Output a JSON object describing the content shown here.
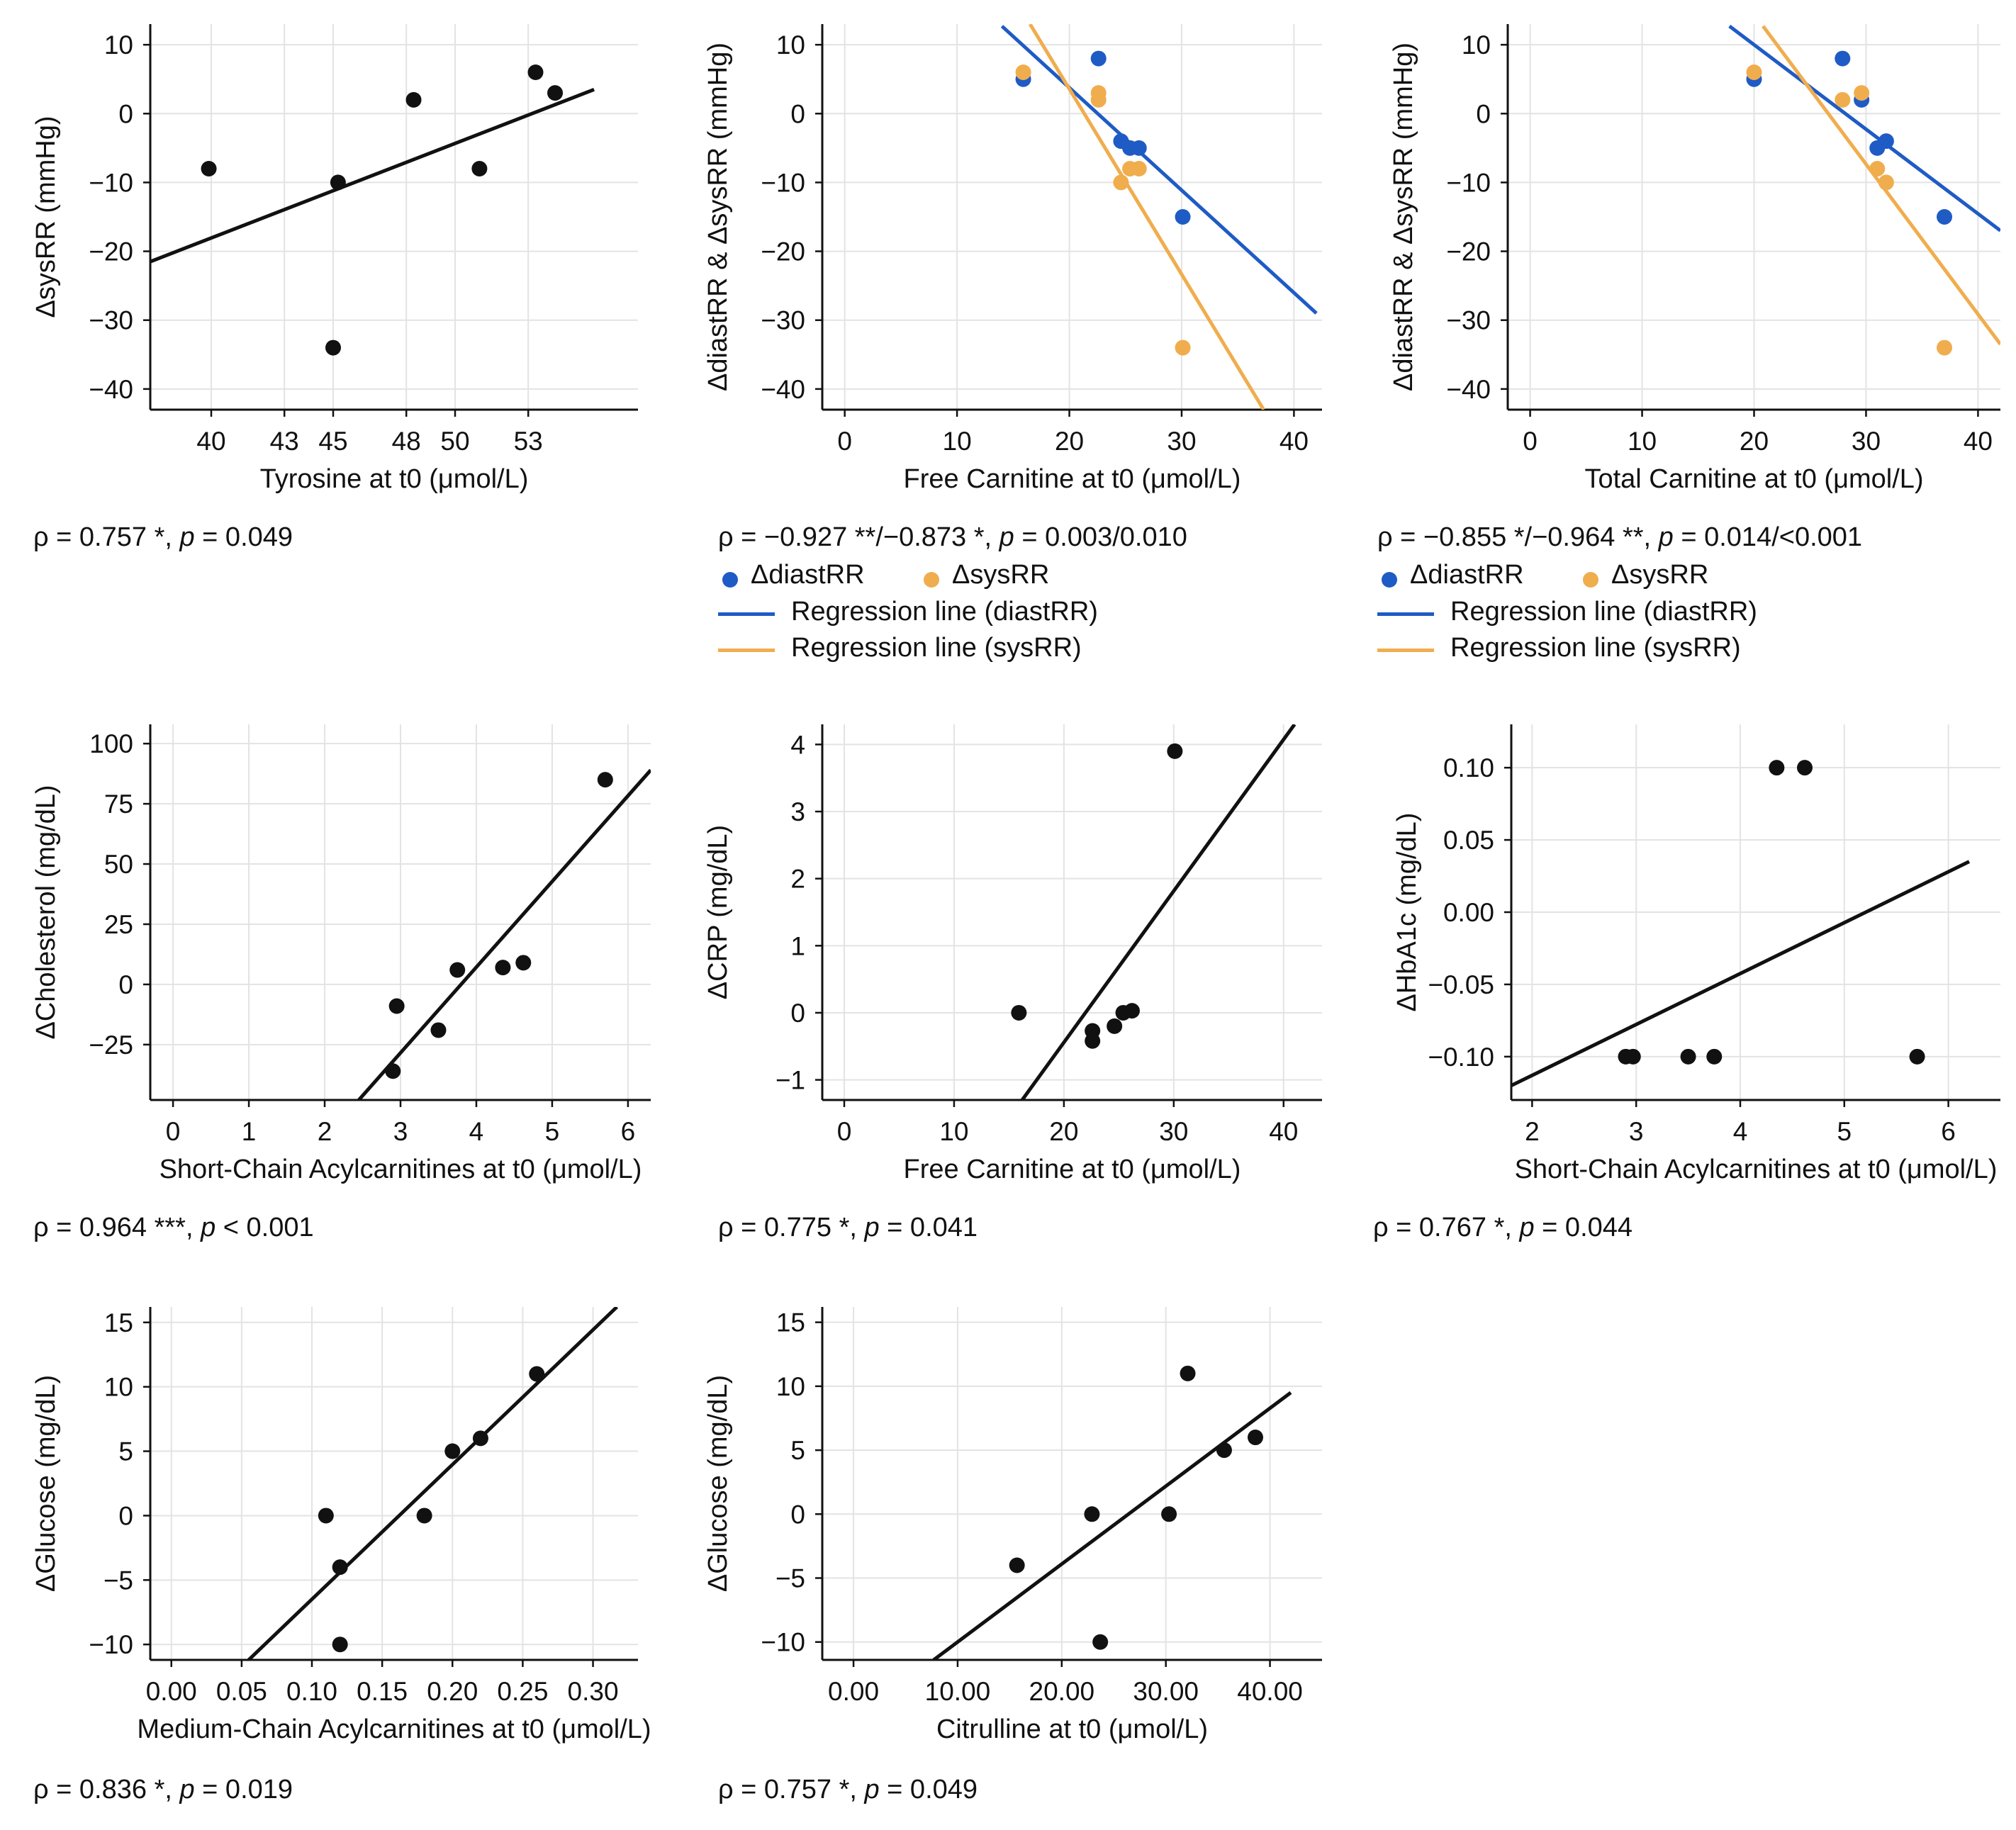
{
  "colors": {
    "diast": "#1f5bc4",
    "sys": "#f0ad4e",
    "black": "#111111",
    "grid": "#e3e3e3"
  },
  "chart_data": [
    {
      "type": "scatter",
      "xlabel": "Tyrosine at t0 (μmol/L)",
      "ylabel": "ΔsysRR (mmHg)",
      "xlim": [
        37.5,
        57.5
      ],
      "ylim": [
        -43,
        13
      ],
      "xticks": [
        40,
        43,
        45,
        48,
        50,
        53
      ],
      "yticks": [
        10,
        0,
        -10,
        -20,
        -30,
        -40
      ],
      "series": [
        {
          "name": "ΔsysRR",
          "color": "black",
          "points": [
            [
              39.9,
              -8
            ],
            [
              45.0,
              -34
            ],
            [
              45.2,
              -10
            ],
            [
              48.3,
              2
            ],
            [
              51.0,
              -8
            ],
            [
              53.3,
              6
            ],
            [
              54.1,
              3
            ]
          ],
          "line": [
            [
              37.5,
              -21.5
            ],
            [
              55.7,
              3.5
            ]
          ]
        }
      ],
      "stat": {
        "rho": "ρ = 0.757 *, ",
        "p": "p",
        "pval": " = 0.049"
      }
    },
    {
      "type": "scatter",
      "xlabel": "Free Carnitine at t0 (μmol/L)",
      "ylabel": "ΔdiastRR & ΔsysRR (mmHg)",
      "xlim": [
        -2,
        42.5
      ],
      "ylim": [
        -43,
        13
      ],
      "xticks": [
        0,
        10,
        20,
        30,
        40
      ],
      "yticks": [
        10,
        0,
        -10,
        -20,
        -30,
        -40
      ],
      "series": [
        {
          "name": "ΔdiastRR",
          "color": "diast",
          "points": [
            [
              15.9,
              5
            ],
            [
              22.6,
              8
            ],
            [
              24.6,
              -4
            ],
            [
              25.4,
              -5
            ],
            [
              26.2,
              -5
            ],
            [
              30.1,
              -15
            ]
          ],
          "line": [
            [
              14,
              12.7
            ],
            [
              42,
              -29
            ]
          ]
        },
        {
          "name": "ΔsysRR",
          "color": "sys",
          "points": [
            [
              15.9,
              6
            ],
            [
              22.6,
              3
            ],
            [
              22.6,
              2
            ],
            [
              24.6,
              -10
            ],
            [
              25.4,
              -8
            ],
            [
              26.2,
              -8
            ],
            [
              30.1,
              -34
            ]
          ],
          "line": [
            [
              16.5,
              13
            ],
            [
              37.3,
              -43
            ]
          ]
        }
      ],
      "stat": {
        "rho": "ρ = −0.927 **/−0.873 *, ",
        "p": "p",
        "pval": " = 0.003/0.010"
      },
      "legend": {
        "dot1": "ΔdiastRR",
        "dot2": "ΔsysRR",
        "line1": "Regression line (diastRR)",
        "line2": "Regression line (sysRR)"
      }
    },
    {
      "type": "scatter",
      "xlabel": "Total Carnitine at t0 (μmol/L)",
      "ylabel": "ΔdiastRR & ΔsysRR (mmHg)",
      "xlim": [
        -2,
        42
      ],
      "ylim": [
        -43,
        13
      ],
      "xticks": [
        0,
        10,
        20,
        30,
        40
      ],
      "yticks": [
        10,
        0,
        -10,
        -20,
        -30,
        -40
      ],
      "series": [
        {
          "name": "ΔdiastRR",
          "color": "diast",
          "points": [
            [
              20.0,
              5
            ],
            [
              27.9,
              8
            ],
            [
              29.6,
              2
            ],
            [
              31.0,
              -5
            ],
            [
              31.8,
              -4
            ],
            [
              37.0,
              -15
            ]
          ],
          "line": [
            [
              17.8,
              12.7
            ],
            [
              42,
              -17
            ]
          ]
        },
        {
          "name": "ΔsysRR",
          "color": "sys",
          "points": [
            [
              20.0,
              6
            ],
            [
              27.9,
              2
            ],
            [
              29.6,
              3
            ],
            [
              31.0,
              -8
            ],
            [
              31.8,
              -10
            ],
            [
              37.0,
              -34
            ]
          ],
          "line": [
            [
              20.8,
              12.7
            ],
            [
              42,
              -33.5
            ]
          ]
        }
      ],
      "stat": {
        "rho": "ρ = −0.855 */−0.964 **, ",
        "p": "p",
        "pval": " = 0.014/<0.001"
      },
      "legend": {
        "dot1": "ΔdiastRR",
        "dot2": "ΔsysRR",
        "line1": "Regression line (diastRR)",
        "line2": "Regression line (sysRR)"
      }
    },
    {
      "type": "scatter",
      "xlabel": "Short-Chain Acylcarnitines at t0 (μmol/L)",
      "ylabel": "ΔCholesterol (mg/dL)",
      "xlim": [
        -0.3,
        6.3
      ],
      "ylim": [
        -48,
        108
      ],
      "xticks": [
        0,
        1,
        2,
        3,
        4,
        5,
        6
      ],
      "yticks": [
        100,
        75,
        50,
        25,
        0,
        -25
      ],
      "series": [
        {
          "name": "ΔCholesterol",
          "color": "black",
          "points": [
            [
              2.9,
              -36
            ],
            [
              2.95,
              -9
            ],
            [
              3.5,
              -19
            ],
            [
              3.75,
              6
            ],
            [
              4.35,
              7
            ],
            [
              4.62,
              9
            ],
            [
              5.7,
              85
            ]
          ],
          "line": [
            [
              2.45,
              -48
            ],
            [
              6.3,
              89
            ]
          ]
        }
      ],
      "stat": {
        "rho": "ρ = 0.964 ***, ",
        "p": "p",
        "pval": " < 0.001"
      }
    },
    {
      "type": "scatter",
      "xlabel": "Free Carnitine at t0 (μmol/L)",
      "ylabel": "ΔCRP (mg/dL)",
      "xlim": [
        -2,
        43.5
      ],
      "ylim": [
        -1.3,
        4.3
      ],
      "xticks": [
        0,
        10,
        20,
        30,
        40
      ],
      "yticks": [
        4,
        3,
        2,
        1,
        0,
        -1
      ],
      "series": [
        {
          "name": "ΔCRP",
          "color": "black",
          "points": [
            [
              15.9,
              0
            ],
            [
              22.6,
              -0.27
            ],
            [
              22.6,
              -0.42
            ],
            [
              24.6,
              -0.2
            ],
            [
              25.4,
              0
            ],
            [
              26.2,
              0.03
            ],
            [
              30.1,
              3.9
            ]
          ],
          "line": [
            [
              16.2,
              -1.3
            ],
            [
              41,
              4.3
            ]
          ]
        }
      ],
      "stat": {
        "rho": "ρ = 0.775 *, ",
        "p": "p",
        "pval": " = 0.041"
      }
    },
    {
      "type": "scatter",
      "xlabel": "Short-Chain Acylcarnitines at t0 (μmol/L)",
      "ylabel": "ΔHbA1c (mg/dL)",
      "xlim": [
        1.8,
        6.5
      ],
      "ylim": [
        -0.13,
        0.13
      ],
      "xticks": [
        2,
        3,
        4,
        5,
        6
      ],
      "yticks": [
        "0.10",
        "0.05",
        "0.00",
        "-0.05",
        "-0.10"
      ],
      "series": [
        {
          "name": "ΔHbA1c",
          "color": "black",
          "points": [
            [
              2.9,
              -0.1
            ],
            [
              2.97,
              -0.1
            ],
            [
              3.5,
              -0.1
            ],
            [
              3.75,
              -0.1
            ],
            [
              4.35,
              0.1
            ],
            [
              4.62,
              0.1
            ],
            [
              5.7,
              -0.1
            ]
          ],
          "line": [
            [
              1.8,
              -0.12
            ],
            [
              6.2,
              0.035
            ]
          ]
        }
      ],
      "stat": {
        "rho": "ρ = 0.767 *, ",
        "p": "p",
        "pval": " = 0.044"
      }
    },
    {
      "type": "scatter",
      "xlabel": "Medium-Chain Acylcarnitines at t0 (μmol/L)",
      "ylabel": "ΔGlucose (mg/dL)",
      "xlim": [
        -0.015,
        0.332
      ],
      "ylim": [
        -11.2,
        16.2
      ],
      "xticks": [
        "0.00",
        "0.05",
        "0.10",
        "0.15",
        "0.20",
        "0.25",
        "0.30"
      ],
      "yticks": [
        15,
        10,
        5,
        0,
        -5,
        -10
      ],
      "series": [
        {
          "name": "ΔGlucose",
          "color": "black",
          "points": [
            [
              0.11,
              0
            ],
            [
              0.12,
              -4
            ],
            [
              0.12,
              -10
            ],
            [
              0.18,
              0
            ],
            [
              0.2,
              5
            ],
            [
              0.22,
              6
            ],
            [
              0.26,
              11
            ]
          ],
          "line": [
            [
              0.055,
              -11.2
            ],
            [
              0.317,
              16.2
            ]
          ]
        }
      ],
      "stat": {
        "rho": "ρ = 0.836 *, ",
        "p": "p",
        "pval": " = 0.019"
      }
    },
    {
      "type": "scatter",
      "xlabel": "Citrulline at t0 (μmol/L)",
      "ylabel": "ΔGlucose (mg/dL)",
      "xlim": [
        -3,
        45
      ],
      "ylim": [
        -11.4,
        16.2
      ],
      "xticks": [
        "0.00",
        "10.00",
        "20.00",
        "30.00",
        "40.00"
      ],
      "yticks": [
        15,
        10,
        5,
        0,
        -5,
        -10
      ],
      "series": [
        {
          "name": "ΔGlucose",
          "color": "black",
          "points": [
            [
              15.7,
              -4
            ],
            [
              22.9,
              0
            ],
            [
              23.7,
              -10
            ],
            [
              30.3,
              0
            ],
            [
              32.1,
              11
            ],
            [
              35.6,
              5
            ],
            [
              38.6,
              6
            ]
          ],
          "line": [
            [
              7.7,
              -11.4
            ],
            [
              42,
              9.5
            ]
          ]
        }
      ],
      "stat": {
        "rho": "ρ = 0.757 *, ",
        "p": "p",
        "pval": " = 0.049"
      }
    }
  ]
}
